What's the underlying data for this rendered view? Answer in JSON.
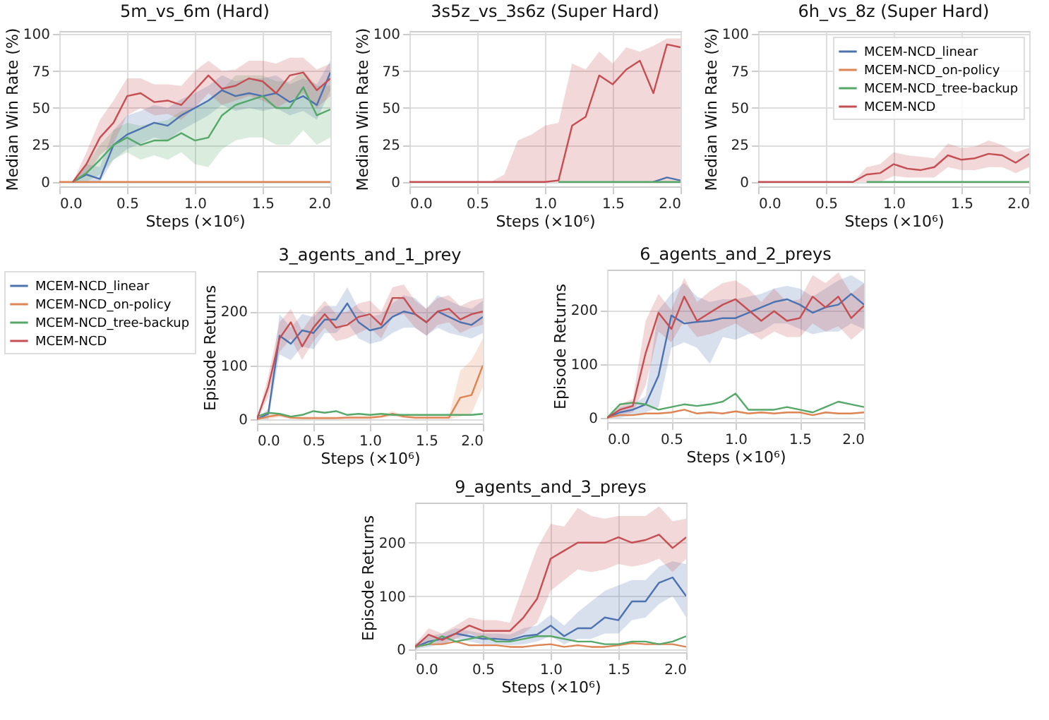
{
  "chart_data": [
    {
      "type": "line",
      "title": "5m_vs_6m (Hard)",
      "xlabel": "Steps (×10⁶)",
      "ylabel": "Median Win Rate (%)",
      "xlim": [
        0,
        2
      ],
      "ylim": [
        -3,
        102
      ],
      "xticks": [
        {
          "value": 0,
          "label": "0.0"
        },
        {
          "value": 0.5,
          "label": "0.5"
        },
        {
          "value": 1,
          "label": "1.0"
        },
        {
          "value": 1.5,
          "label": "1.5"
        },
        {
          "value": 2,
          "label": "2.0"
        }
      ],
      "yticks": [
        0,
        25,
        50,
        75,
        100
      ],
      "grid": true,
      "x": [
        0,
        0.1,
        0.2,
        0.3,
        0.4,
        0.5,
        0.6,
        0.7,
        0.8,
        0.9,
        1,
        1.1,
        1.2,
        1.3,
        1.4,
        1.5,
        1.6,
        1.7,
        1.8,
        1.9,
        2
      ],
      "series": [
        {
          "color": "#4c72b0",
          "values": [
            null,
            0,
            5,
            2,
            25,
            32,
            36,
            40,
            38,
            45,
            50,
            55,
            62,
            58,
            60,
            58,
            60,
            54,
            58,
            52,
            74
          ],
          "lower": [
            0,
            0,
            0,
            0,
            15,
            22,
            26,
            30,
            28,
            35,
            40,
            45,
            52,
            48,
            50,
            48,
            50,
            45,
            48,
            42,
            62
          ],
          "upper": [
            0,
            0,
            12,
            10,
            35,
            45,
            48,
            52,
            50,
            56,
            60,
            65,
            72,
            68,
            70,
            70,
            72,
            66,
            70,
            66,
            82
          ]
        },
        {
          "color": "#dd8452",
          "values": [
            0,
            0,
            0,
            0,
            0,
            0,
            0,
            0,
            0,
            0,
            0,
            0,
            0,
            0,
            0,
            0,
            0,
            0,
            0,
            0,
            0
          ]
        },
        {
          "color": "#55a868",
          "values": [
            null,
            0,
            6,
            15,
            25,
            30,
            25,
            28,
            28,
            33,
            28,
            30,
            45,
            52,
            55,
            58,
            50,
            50,
            64,
            45,
            49
          ],
          "lower": [
            0,
            0,
            0,
            5,
            15,
            20,
            15,
            18,
            15,
            20,
            12,
            10,
            22,
            28,
            30,
            30,
            25,
            25,
            35,
            25,
            30
          ],
          "upper": [
            0,
            0,
            12,
            25,
            35,
            40,
            38,
            40,
            42,
            48,
            50,
            55,
            62,
            72,
            72,
            72,
            68,
            68,
            75,
            65,
            65
          ]
        },
        {
          "color": "#c44e52",
          "values": [
            null,
            0,
            12,
            30,
            40,
            58,
            60,
            54,
            55,
            52,
            62,
            72,
            63,
            65,
            70,
            68,
            60,
            72,
            74,
            62,
            70
          ],
          "lower": [
            0,
            0,
            4,
            18,
            26,
            45,
            50,
            45,
            46,
            42,
            50,
            60,
            52,
            55,
            58,
            55,
            50,
            55,
            60,
            50,
            58
          ],
          "upper": [
            0,
            0,
            20,
            42,
            55,
            70,
            70,
            66,
            66,
            65,
            75,
            82,
            75,
            76,
            82,
            82,
            80,
            84,
            84,
            76,
            80
          ]
        }
      ]
    },
    {
      "type": "line",
      "title": "3s5z_vs_3s6z (Super Hard)",
      "xlabel": "Steps (×10⁶)",
      "ylabel": "Median Win Rate (%)",
      "xlim": [
        0,
        2
      ],
      "ylim": [
        -3,
        102
      ],
      "xticks": [
        {
          "value": 0,
          "label": "0.0"
        },
        {
          "value": 0.5,
          "label": "0.5"
        },
        {
          "value": 1,
          "label": "1.0"
        },
        {
          "value": 1.5,
          "label": "1.5"
        },
        {
          "value": 2,
          "label": "2.0"
        }
      ],
      "yticks": [
        0,
        25,
        50,
        75,
        100
      ],
      "grid": true,
      "x": [
        0,
        0.1,
        0.2,
        0.3,
        0.4,
        0.5,
        0.6,
        0.7,
        0.8,
        0.9,
        1,
        1.1,
        1.2,
        1.3,
        1.4,
        1.5,
        1.6,
        1.7,
        1.8,
        1.9,
        2
      ],
      "series": [
        {
          "color": "#4c72b0",
          "values": [
            null,
            null,
            null,
            null,
            null,
            null,
            null,
            null,
            null,
            null,
            null,
            null,
            null,
            null,
            null,
            null,
            null,
            null,
            0,
            3,
            1
          ]
        },
        {
          "color": "#dd8452",
          "values": [
            null,
            null,
            null,
            null,
            null,
            null,
            null,
            null,
            null,
            null,
            null,
            null,
            null,
            null,
            null,
            null,
            null,
            null,
            null,
            null,
            null
          ]
        },
        {
          "color": "#55a868",
          "values": [
            null,
            null,
            null,
            null,
            null,
            null,
            null,
            null,
            null,
            null,
            null,
            0,
            0,
            0,
            0,
            0,
            0,
            0,
            0,
            0,
            0
          ]
        },
        {
          "color": "#c44e52",
          "values": [
            0,
            0,
            0,
            0,
            0,
            0,
            0,
            0,
            0,
            0,
            0,
            1,
            38,
            44,
            72,
            66,
            76,
            82,
            60,
            93,
            91
          ],
          "lower": [
            0,
            0,
            0,
            0,
            0,
            0,
            0,
            0,
            0,
            0,
            0,
            0,
            0,
            0,
            0,
            0,
            0,
            0,
            0,
            0,
            0
          ],
          "upper": [
            0,
            0,
            0,
            0,
            0,
            0,
            0,
            5,
            28,
            32,
            38,
            40,
            80,
            76,
            88,
            80,
            91,
            88,
            92,
            97,
            97
          ]
        }
      ]
    },
    {
      "type": "line",
      "title": "6h_vs_8z (Super Hard)",
      "xlabel": "Steps (×10⁶)",
      "ylabel": "Median Win Rate (%)",
      "xlim": [
        0,
        2
      ],
      "ylim": [
        -3,
        102
      ],
      "xticks": [
        {
          "value": 0,
          "label": "0.0"
        },
        {
          "value": 0.5,
          "label": "0.5"
        },
        {
          "value": 1,
          "label": "1.0"
        },
        {
          "value": 1.5,
          "label": "1.5"
        },
        {
          "value": 2,
          "label": "2.0"
        }
      ],
      "yticks": [
        0,
        25,
        50,
        75,
        100
      ],
      "grid": true,
      "legend": "top right",
      "x": [
        0,
        0.1,
        0.2,
        0.3,
        0.4,
        0.5,
        0.6,
        0.7,
        0.8,
        0.9,
        1,
        1.1,
        1.2,
        1.3,
        1.4,
        1.5,
        1.6,
        1.7,
        1.8,
        1.9,
        2
      ],
      "series": [
        {
          "name": "MCEM-NCD_linear",
          "color": "#4c72b0",
          "values": [
            null,
            null,
            null,
            null,
            null,
            null,
            null,
            null,
            null,
            null,
            null,
            null,
            null,
            null,
            null,
            null,
            null,
            null,
            null,
            null,
            null
          ]
        },
        {
          "name": "MCEM-NCD_on-policy",
          "color": "#dd8452",
          "values": [
            null,
            null,
            null,
            null,
            null,
            null,
            null,
            null,
            null,
            null,
            null,
            null,
            null,
            null,
            null,
            null,
            null,
            null,
            null,
            null,
            null
          ]
        },
        {
          "name": "MCEM-NCD_tree-backup",
          "color": "#55a868",
          "values": [
            null,
            null,
            null,
            null,
            null,
            null,
            null,
            null,
            0,
            0,
            0,
            0,
            0,
            0,
            0,
            0,
            0,
            0,
            0,
            0,
            0
          ]
        },
        {
          "name": "MCEM-NCD",
          "color": "#c44e52",
          "values": [
            0,
            0,
            0,
            0,
            0,
            0,
            0,
            0,
            5,
            6,
            12,
            9,
            8,
            10,
            18,
            15,
            16,
            19,
            18,
            13,
            19
          ],
          "lower": [
            0,
            0,
            0,
            0,
            0,
            0,
            0,
            0,
            0,
            0,
            4,
            3,
            3,
            3,
            10,
            8,
            8,
            10,
            10,
            6,
            10
          ],
          "upper": [
            0,
            0,
            0,
            0,
            0,
            0,
            0,
            0,
            10,
            12,
            20,
            18,
            17,
            16,
            26,
            23,
            24,
            28,
            25,
            20,
            23
          ]
        }
      ]
    },
    {
      "type": "line",
      "title": "3_agents_and_1_prey",
      "xlabel": "Steps (×10⁶)",
      "ylabel": "Episode Returns",
      "xlim": [
        0,
        2
      ],
      "ylim": [
        -8,
        275
      ],
      "xticks": [
        {
          "value": 0,
          "label": "0.0"
        },
        {
          "value": 0.5,
          "label": "0.5"
        },
        {
          "value": 1,
          "label": "1.0"
        },
        {
          "value": 1.5,
          "label": "1.5"
        },
        {
          "value": 2,
          "label": "2.0"
        }
      ],
      "yticks": [
        0,
        100,
        200
      ],
      "grid": true,
      "legend": "left",
      "x": [
        0,
        0.1,
        0.2,
        0.3,
        0.4,
        0.5,
        0.6,
        0.7,
        0.8,
        0.9,
        1,
        1.1,
        1.2,
        1.3,
        1.4,
        1.5,
        1.6,
        1.7,
        1.8,
        1.9,
        2
      ],
      "series": [
        {
          "name": "MCEM-NCD_linear",
          "color": "#4c72b0",
          "values": [
            0,
            10,
            155,
            140,
            165,
            160,
            185,
            185,
            215,
            180,
            165,
            170,
            190,
            200,
            195,
            180,
            200,
            190,
            180,
            175,
            190
          ],
          "lower": [
            0,
            0,
            120,
            110,
            135,
            130,
            160,
            160,
            180,
            150,
            140,
            145,
            160,
            170,
            170,
            155,
            170,
            160,
            155,
            150,
            160
          ],
          "upper": [
            0,
            20,
            195,
            170,
            195,
            190,
            210,
            210,
            245,
            205,
            190,
            195,
            215,
            230,
            225,
            205,
            230,
            220,
            210,
            205,
            220
          ]
        },
        {
          "name": "MCEM-NCD_on-policy",
          "color": "#dd8452",
          "values": [
            0,
            5,
            8,
            3,
            2,
            2,
            2,
            2,
            3,
            3,
            3,
            5,
            10,
            5,
            3,
            3,
            3,
            3,
            40,
            45,
            100
          ],
          "lower": [
            0,
            0,
            4,
            0,
            0,
            0,
            0,
            0,
            0,
            0,
            0,
            2,
            5,
            2,
            0,
            0,
            0,
            0,
            5,
            10,
            60
          ],
          "upper": [
            5,
            10,
            12,
            6,
            5,
            5,
            5,
            5,
            6,
            6,
            6,
            8,
            15,
            8,
            6,
            6,
            6,
            6,
            90,
            110,
            150
          ]
        },
        {
          "name": "MCEM-NCD_tree-backup",
          "color": "#55a868",
          "values": [
            5,
            12,
            10,
            5,
            8,
            15,
            12,
            15,
            8,
            10,
            8,
            10,
            8,
            8,
            8,
            8,
            8,
            8,
            8,
            8,
            10
          ]
        },
        {
          "name": "MCEM-NCD",
          "color": "#c44e52",
          "values": [
            0,
            60,
            150,
            180,
            135,
            170,
            195,
            170,
            175,
            190,
            195,
            175,
            225,
            225,
            195,
            180,
            200,
            205,
            185,
            195,
            200
          ],
          "lower": [
            0,
            40,
            125,
            150,
            110,
            145,
            170,
            145,
            150,
            160,
            170,
            150,
            190,
            195,
            170,
            155,
            175,
            180,
            160,
            170,
            175
          ],
          "upper": [
            0,
            80,
            180,
            205,
            165,
            195,
            220,
            195,
            200,
            215,
            220,
            200,
            245,
            250,
            220,
            205,
            225,
            230,
            210,
            220,
            225
          ]
        }
      ]
    },
    {
      "type": "line",
      "title": "6_agents_and_2_preys",
      "xlabel": "Steps (×10⁶)",
      "ylabel": "Episode Returns",
      "xlim": [
        0,
        2
      ],
      "ylim": [
        -8,
        275
      ],
      "xticks": [
        {
          "value": 0,
          "label": "0.0"
        },
        {
          "value": 0.5,
          "label": "0.5"
        },
        {
          "value": 1,
          "label": "1.0"
        },
        {
          "value": 1.5,
          "label": "1.5"
        },
        {
          "value": 2,
          "label": "2.0"
        }
      ],
      "yticks": [
        0,
        100,
        200
      ],
      "grid": true,
      "x": [
        0,
        0.1,
        0.2,
        0.3,
        0.4,
        0.5,
        0.6,
        0.7,
        0.8,
        0.9,
        1,
        1.1,
        1.2,
        1.3,
        1.4,
        1.5,
        1.6,
        1.7,
        1.8,
        1.9,
        2
      ],
      "series": [
        {
          "color": "#4c72b0",
          "values": [
            0,
            10,
            15,
            25,
            78,
            190,
            175,
            178,
            180,
            185,
            185,
            195,
            205,
            215,
            220,
            210,
            195,
            205,
            210,
            230,
            210
          ],
          "lower": [
            0,
            0,
            5,
            10,
            20,
            130,
            140,
            130,
            100,
            150,
            145,
            155,
            160,
            175,
            175,
            165,
            155,
            160,
            160,
            175,
            165
          ],
          "upper": [
            0,
            20,
            25,
            40,
            200,
            230,
            250,
            225,
            215,
            220,
            220,
            225,
            230,
            240,
            245,
            240,
            225,
            240,
            255,
            265,
            250
          ]
        },
        {
          "color": "#dd8452",
          "values": [
            0,
            5,
            5,
            8,
            8,
            10,
            15,
            8,
            10,
            8,
            12,
            8,
            10,
            8,
            10,
            10,
            5,
            10,
            8,
            8,
            10
          ]
        },
        {
          "color": "#55a868",
          "values": [
            0,
            25,
            28,
            25,
            15,
            20,
            25,
            22,
            25,
            30,
            45,
            15,
            15,
            15,
            20,
            15,
            10,
            20,
            30,
            25,
            20
          ]
        },
        {
          "color": "#c44e52",
          "values": [
            0,
            15,
            22,
            120,
            195,
            165,
            225,
            180,
            195,
            210,
            220,
            200,
            180,
            198,
            180,
            185,
            225,
            205,
            225,
            185,
            208
          ],
          "lower": [
            0,
            5,
            10,
            60,
            160,
            140,
            180,
            150,
            155,
            165,
            175,
            160,
            145,
            160,
            150,
            150,
            175,
            160,
            170,
            145,
            165
          ],
          "upper": [
            0,
            25,
            35,
            180,
            230,
            200,
            260,
            215,
            235,
            250,
            255,
            240,
            215,
            240,
            215,
            220,
            265,
            250,
            270,
            230,
            250
          ]
        }
      ]
    },
    {
      "type": "line",
      "title": "9_agents_and_3_preys",
      "xlabel": "Steps (×10⁶)",
      "ylabel": "Episode Returns",
      "xlim": [
        0,
        2
      ],
      "ylim": [
        -5,
        275
      ],
      "xticks": [
        {
          "value": 0,
          "label": "0.0"
        },
        {
          "value": 0.5,
          "label": "0.5"
        },
        {
          "value": 1,
          "label": "1.0"
        },
        {
          "value": 1.5,
          "label": "1.5"
        },
        {
          "value": 2,
          "label": "2.0"
        }
      ],
      "yticks": [
        0,
        100,
        200
      ],
      "grid": true,
      "x": [
        0,
        0.1,
        0.2,
        0.3,
        0.4,
        0.5,
        0.6,
        0.7,
        0.8,
        0.9,
        1,
        1.1,
        1.2,
        1.3,
        1.4,
        1.5,
        1.6,
        1.7,
        1.8,
        1.9,
        2
      ],
      "series": [
        {
          "color": "#4c72b0",
          "values": [
            5,
            15,
            20,
            30,
            25,
            20,
            20,
            18,
            25,
            28,
            45,
            25,
            40,
            40,
            60,
            55,
            90,
            90,
            125,
            135,
            100
          ],
          "lower": [
            0,
            5,
            10,
            20,
            15,
            10,
            10,
            8,
            10,
            15,
            25,
            10,
            20,
            20,
            30,
            30,
            55,
            60,
            85,
            100,
            60
          ],
          "upper": [
            10,
            25,
            30,
            40,
            35,
            30,
            30,
            28,
            40,
            45,
            65,
            45,
            70,
            90,
            110,
            120,
            130,
            130,
            155,
            165,
            160
          ]
        },
        {
          "color": "#dd8452",
          "values": [
            5,
            10,
            10,
            15,
            8,
            8,
            8,
            5,
            5,
            8,
            10,
            5,
            8,
            5,
            5,
            8,
            12,
            10,
            10,
            10,
            5
          ]
        },
        {
          "color": "#55a868",
          "values": [
            5,
            10,
            25,
            15,
            20,
            25,
            15,
            15,
            20,
            25,
            25,
            20,
            15,
            15,
            10,
            10,
            15,
            15,
            10,
            15,
            25
          ]
        },
        {
          "color": "#c44e52",
          "values": [
            5,
            28,
            18,
            30,
            45,
            35,
            35,
            35,
            60,
            95,
            170,
            185,
            200,
            200,
            200,
            210,
            200,
            205,
            215,
            190,
            210
          ],
          "lower": [
            0,
            15,
            10,
            20,
            30,
            20,
            20,
            20,
            30,
            50,
            110,
            130,
            150,
            145,
            150,
            160,
            155,
            160,
            170,
            145,
            170
          ],
          "upper": [
            10,
            40,
            30,
            45,
            60,
            55,
            55,
            50,
            120,
            190,
            235,
            230,
            265,
            250,
            245,
            250,
            250,
            250,
            268,
            240,
            245
          ]
        }
      ]
    }
  ]
}
